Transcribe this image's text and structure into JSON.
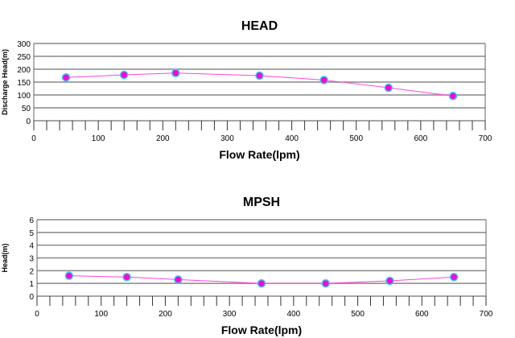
{
  "chart_data": [
    {
      "type": "line",
      "title": "HEAD",
      "xlabel": "Flow Rate(lpm)",
      "ylabel": "Discharge Head(m)",
      "xlim": [
        0,
        700
      ],
      "ylim": [
        0,
        300
      ],
      "xticks": [
        0,
        100,
        200,
        300,
        400,
        500,
        600,
        700
      ],
      "yticks": [
        0,
        50,
        100,
        150,
        200,
        250,
        300
      ],
      "x": [
        50,
        140,
        220,
        350,
        450,
        550,
        650
      ],
      "y": [
        168,
        178,
        185,
        175,
        158,
        128,
        96
      ],
      "grid": true,
      "colors": {
        "line": "#ff44dd",
        "marker_fill": "#ff00dd",
        "marker_edge": "#33ccee",
        "grid": "#888888"
      }
    },
    {
      "type": "line",
      "title": "MPSH",
      "xlabel": "Flow Rate(lpm)",
      "ylabel": "Head(m)",
      "xlim": [
        0,
        700
      ],
      "ylim": [
        0,
        6
      ],
      "xticks": [
        0,
        100,
        200,
        300,
        400,
        500,
        600,
        700
      ],
      "yticks": [
        0,
        1,
        2,
        3,
        4,
        5,
        6
      ],
      "x": [
        50,
        140,
        220,
        350,
        450,
        550,
        650
      ],
      "y": [
        1.6,
        1.5,
        1.3,
        1.0,
        1.0,
        1.2,
        1.5
      ],
      "grid": true,
      "colors": {
        "line": "#ff44dd",
        "marker_fill": "#ff00dd",
        "marker_edge": "#33ccee",
        "grid": "#888888"
      }
    }
  ]
}
